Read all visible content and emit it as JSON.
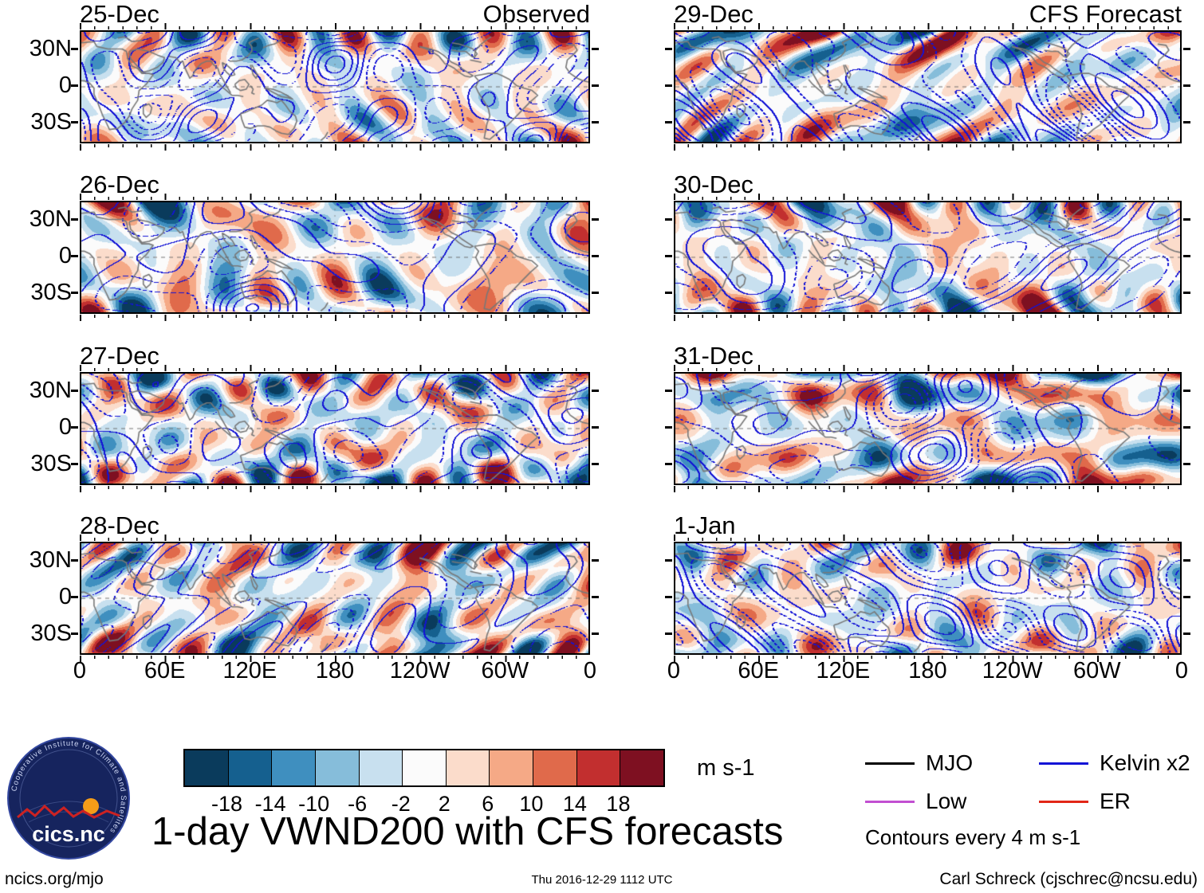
{
  "chart_data": {
    "type": "heatmap",
    "title": "1-day VWND200 with CFS forecasts",
    "description": "Eight global contour maps of 200-hPa meridional wind anomalies (shaded every 4 m s-1) with wave-filtered anomalies contoured in blue; left column observed 25-28 Dec, right column CFS forecast 29 Dec - 1 Jan",
    "units": "m s-1",
    "panels": [
      {
        "label": "25-Dec",
        "source": "Observed"
      },
      {
        "label": "26-Dec",
        "source": "Observed"
      },
      {
        "label": "27-Dec",
        "source": "Observed"
      },
      {
        "label": "28-Dec",
        "source": "Observed"
      },
      {
        "label": "29-Dec",
        "source": "CFS Forecast"
      },
      {
        "label": "30-Dec",
        "source": "CFS Forecast"
      },
      {
        "label": "31-Dec",
        "source": "CFS Forecast"
      },
      {
        "label": "1-Jan",
        "source": "CFS Forecast"
      }
    ],
    "axes": {
      "x_ticks": [
        "0",
        "60E",
        "120E",
        "180",
        "120W",
        "60W",
        "0"
      ],
      "y_ticks": [
        "30N",
        "0",
        "30S"
      ],
      "lon_range": [
        0,
        360
      ],
      "lat_range": [
        -45,
        45
      ]
    },
    "colorbar": {
      "label": "m s-1",
      "levels": [
        -18,
        -14,
        -10,
        -6,
        -2,
        2,
        6,
        10,
        14,
        18
      ],
      "colors": [
        "#0a3b5c",
        "#15608f",
        "#3f8fbf",
        "#86bdda",
        "#c8e0ef",
        "#fbfbfb",
        "#fbdccb",
        "#f5a986",
        "#e06a4b",
        "#c22f2f",
        "#7e1021"
      ]
    },
    "legend": [
      {
        "label": "MJO",
        "color": "#000000"
      },
      {
        "label": "Kelvin x2",
        "color": "#1313d6"
      },
      {
        "label": "Low",
        "color": "#c24fd1"
      },
      {
        "label": "ER",
        "color": "#e22617"
      }
    ],
    "contour_note": "Contours every 4 m s-1",
    "contour_color": "#1313d6",
    "coastline_color": "#787878"
  },
  "logo": {
    "wordmark": "cics.nc",
    "ring_text": "Cooperative Institute for Climate and Satellites"
  },
  "footer": {
    "left": "ncics.org/mjo",
    "center": "Thu 2016-12-29 1112 UTC",
    "right": "Carl Schreck (cjschrec@ncsu.edu)"
  }
}
